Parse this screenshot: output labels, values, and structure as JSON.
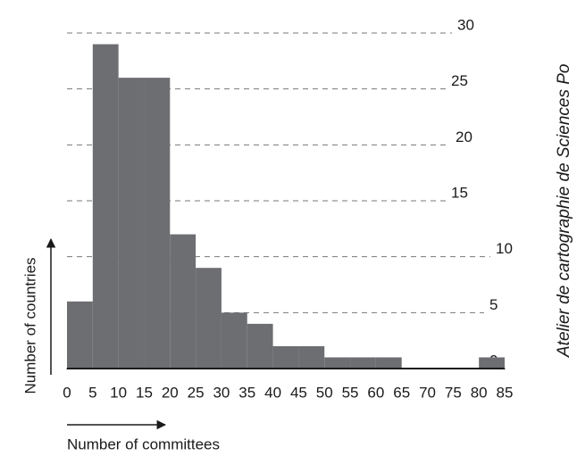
{
  "chart_data": {
    "type": "histogram",
    "bins": [
      0,
      5,
      10,
      15,
      20,
      25,
      30,
      35,
      40,
      45,
      50,
      55,
      60,
      65,
      70,
      75,
      80,
      85
    ],
    "values": [
      6,
      29,
      26,
      26,
      12,
      9,
      5,
      4,
      2,
      2,
      1,
      1,
      1,
      0,
      0,
      0,
      1
    ],
    "color": "#6d6e71",
    "xlim": [
      0,
      85
    ],
    "xticks": [
      0,
      5,
      10,
      15,
      20,
      25,
      30,
      35,
      40,
      45,
      50,
      55,
      60,
      65,
      70,
      75,
      80,
      85
    ],
    "ylim": [
      0,
      30
    ],
    "yticks": [
      0,
      5,
      10,
      15,
      20,
      25,
      30
    ],
    "grid": true,
    "xlabel": "Number of committees",
    "ylabel": "Number of countries",
    "credit": "Atelier de cartographie de Sciences Po"
  }
}
